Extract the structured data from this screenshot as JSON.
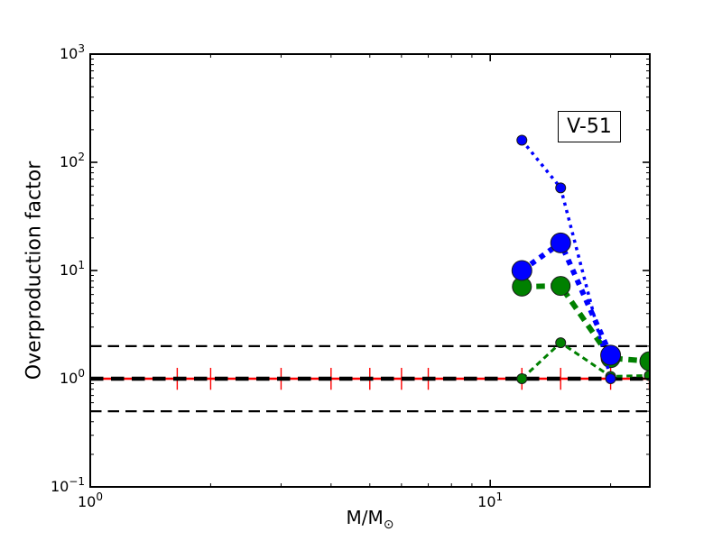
{
  "chart_data": {
    "type": "line",
    "title": "",
    "ylabel": "Overproduction factor",
    "xlabel_base": "M/M",
    "xlabel_sub": "⊙",
    "xscale": "log",
    "yscale": "log",
    "xlim": [
      1,
      25.06
    ],
    "ylim": [
      0.1,
      1000
    ],
    "grid": false,
    "legend": {
      "label": "V-51",
      "position": "upper-right"
    },
    "axis": {
      "x_major_ticks": [
        1,
        10
      ],
      "x_minor_ticks": [
        2,
        3,
        4,
        5,
        6,
        7,
        8,
        9,
        20
      ],
      "y_major_ticks": [
        0.1,
        1,
        10,
        100,
        1000
      ],
      "y_minor_ticks": [
        0.2,
        0.3,
        0.4,
        0.5,
        0.6,
        0.7,
        0.8,
        0.9,
        2,
        3,
        4,
        5,
        6,
        7,
        8,
        9,
        20,
        30,
        40,
        50,
        60,
        70,
        80,
        90,
        200,
        300,
        400,
        500,
        600,
        700,
        800,
        900
      ],
      "x_tick_labels": [
        {
          "base": "10",
          "exp": "0",
          "value": 1
        },
        {
          "base": "10",
          "exp": "1",
          "value": 10
        }
      ],
      "y_tick_labels": [
        {
          "base": "10",
          "exp": "−1",
          "value": 0.1
        },
        {
          "base": "10",
          "exp": "0",
          "value": 1
        },
        {
          "base": "10",
          "exp": "1",
          "value": 10
        },
        {
          "base": "10",
          "exp": "2",
          "value": 100
        },
        {
          "base": "10",
          "exp": "3",
          "value": 1000
        }
      ]
    },
    "reference_lines": [
      {
        "name": "factor-2-upper",
        "y": 2,
        "color": "#000000",
        "width": 2.2,
        "dash": "12.5 7"
      },
      {
        "name": "factor-2-lower",
        "y": 0.5,
        "color": "#000000",
        "width": 2.2,
        "dash": "12.5 7"
      },
      {
        "name": "unity-thick",
        "y": 1,
        "color": "#000000",
        "width": 4.6,
        "dash": "14.5 8.5"
      }
    ],
    "solar_line": {
      "y": 1,
      "color": "#ff0000",
      "width": 2.4,
      "error_x": [
        1.65,
        2,
        3,
        4,
        5,
        6,
        7,
        12,
        15,
        20,
        25
      ],
      "error_hi": 1.26,
      "error_lo": 0.79,
      "error_tick_width": 1.4
    },
    "series": [
      {
        "name": "green-large-markers",
        "color": "#008000",
        "marker": "circle",
        "marker_radius": 10.5,
        "line_style": "dashed",
        "line_width": 6,
        "dash": "9.5 6.5",
        "x": [
          12,
          15,
          20,
          25
        ],
        "y": [
          7.1,
          7.2,
          1.55,
          1.45
        ]
      },
      {
        "name": "blue-large-markers",
        "color": "#0000ff",
        "marker": "circle",
        "marker_radius": 11,
        "line_style": "dotted",
        "line_width": 6,
        "dash": "6 6.2",
        "x": [
          12,
          15,
          20
        ],
        "y": [
          10,
          18,
          1.65
        ]
      },
      {
        "name": "green-small-markers",
        "color": "#008000",
        "marker": "circle",
        "marker_radius": 5.5,
        "line_style": "dashed",
        "line_width": 3,
        "dash": "6.5 4.5",
        "x": [
          12,
          15,
          20,
          25
        ],
        "y": [
          1.0,
          2.15,
          1.05,
          1.07
        ]
      },
      {
        "name": "blue-small-markers",
        "color": "#0000ff",
        "marker": "circle",
        "marker_radius": 5.5,
        "line_style": "dotted",
        "line_width": 3.5,
        "dash": "3.5 5",
        "x": [
          12,
          15,
          20
        ],
        "y": [
          160,
          58,
          1.0
        ]
      }
    ]
  }
}
